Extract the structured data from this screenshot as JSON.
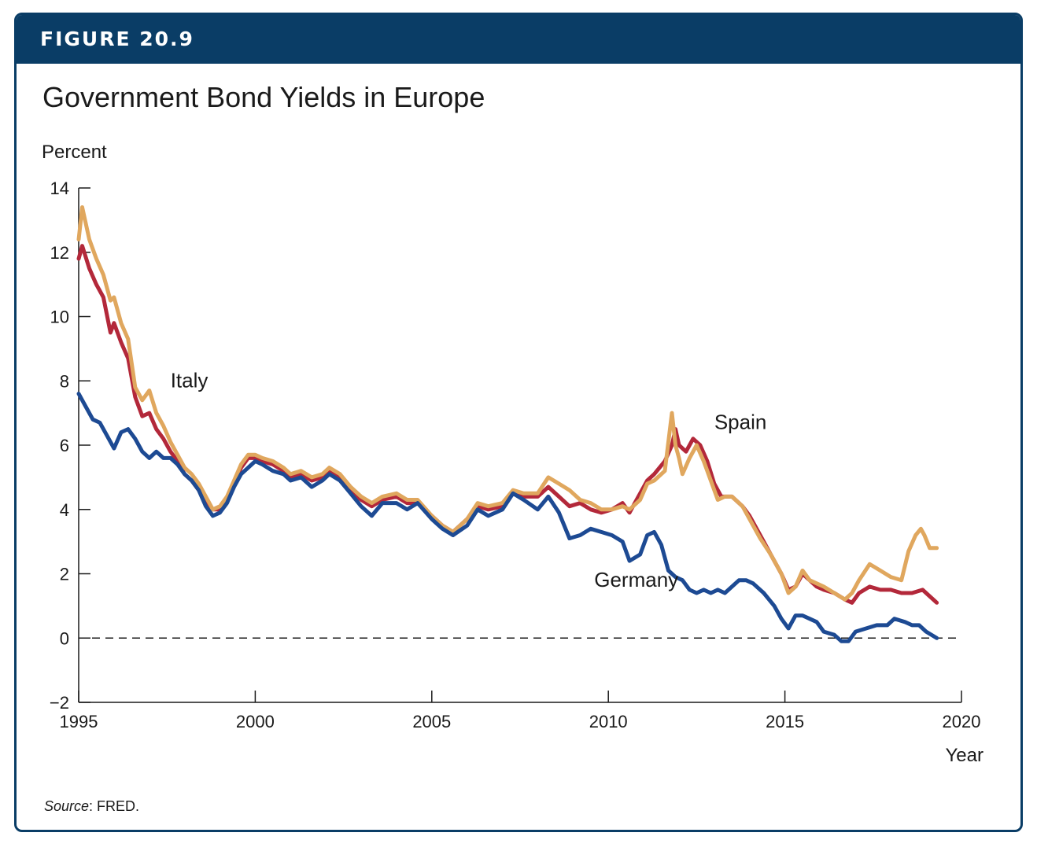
{
  "figure": {
    "label": "FIGURE 20.9",
    "title": "Government Bond Yields in Europe",
    "source_prefix": "Source",
    "source_text": ": FRED."
  },
  "colors": {
    "banner": "#0a3d66",
    "italy": "#b3283a",
    "spain": "#e0a75e",
    "germany": "#1d4a93"
  },
  "chart_data": {
    "type": "line",
    "ylabel": "Percent",
    "xlabel": "Year",
    "xlim": [
      1995,
      2020
    ],
    "ylim": [
      -2,
      14
    ],
    "xticks": [
      1995,
      2000,
      2005,
      2010,
      2015,
      2020
    ],
    "yticks": [
      -2,
      0,
      2,
      4,
      6,
      8,
      10,
      12,
      14
    ],
    "ytick_labels": [
      "−2",
      "0",
      "2",
      "4",
      "6",
      "8",
      "10",
      "12",
      "14"
    ],
    "reference_line": {
      "y": 0,
      "style": "dashed"
    },
    "grid": false,
    "series": [
      {
        "name": "Italy",
        "color": "#b3283a",
        "points": [
          [
            1995.0,
            11.8
          ],
          [
            1995.1,
            12.2
          ],
          [
            1995.3,
            11.5
          ],
          [
            1995.5,
            11.0
          ],
          [
            1995.7,
            10.6
          ],
          [
            1995.9,
            9.5
          ],
          [
            1996.0,
            9.8
          ],
          [
            1996.2,
            9.2
          ],
          [
            1996.4,
            8.7
          ],
          [
            1996.6,
            7.5
          ],
          [
            1996.8,
            6.9
          ],
          [
            1997.0,
            7.0
          ],
          [
            1997.2,
            6.5
          ],
          [
            1997.4,
            6.2
          ],
          [
            1997.6,
            5.8
          ],
          [
            1997.8,
            5.5
          ],
          [
            1998.0,
            5.1
          ],
          [
            1998.2,
            4.9
          ],
          [
            1998.4,
            4.6
          ],
          [
            1998.6,
            4.3
          ],
          [
            1998.8,
            4.0
          ],
          [
            1999.0,
            4.0
          ],
          [
            1999.2,
            4.3
          ],
          [
            1999.4,
            4.8
          ],
          [
            1999.6,
            5.3
          ],
          [
            1999.8,
            5.6
          ],
          [
            2000.0,
            5.6
          ],
          [
            2000.2,
            5.5
          ],
          [
            2000.5,
            5.4
          ],
          [
            2000.8,
            5.2
          ],
          [
            2001.0,
            5.0
          ],
          [
            2001.3,
            5.1
          ],
          [
            2001.6,
            4.9
          ],
          [
            2001.9,
            5.0
          ],
          [
            2002.1,
            5.2
          ],
          [
            2002.4,
            5.0
          ],
          [
            2002.7,
            4.6
          ],
          [
            2003.0,
            4.3
          ],
          [
            2003.3,
            4.1
          ],
          [
            2003.6,
            4.3
          ],
          [
            2004.0,
            4.4
          ],
          [
            2004.3,
            4.2
          ],
          [
            2004.6,
            4.2
          ],
          [
            2005.0,
            3.8
          ],
          [
            2005.3,
            3.5
          ],
          [
            2005.6,
            3.3
          ],
          [
            2006.0,
            3.7
          ],
          [
            2006.3,
            4.1
          ],
          [
            2006.6,
            4.0
          ],
          [
            2007.0,
            4.1
          ],
          [
            2007.3,
            4.5
          ],
          [
            2007.6,
            4.4
          ],
          [
            2008.0,
            4.4
          ],
          [
            2008.3,
            4.7
          ],
          [
            2008.6,
            4.4
          ],
          [
            2008.9,
            4.1
          ],
          [
            2009.2,
            4.2
          ],
          [
            2009.5,
            4.0
          ],
          [
            2009.8,
            3.9
          ],
          [
            2010.1,
            4.0
          ],
          [
            2010.4,
            4.2
          ],
          [
            2010.6,
            3.9
          ],
          [
            2010.9,
            4.5
          ],
          [
            2011.1,
            4.9
          ],
          [
            2011.3,
            5.1
          ],
          [
            2011.6,
            5.5
          ],
          [
            2011.8,
            6.0
          ],
          [
            2011.9,
            6.5
          ],
          [
            2012.0,
            6.0
          ],
          [
            2012.2,
            5.8
          ],
          [
            2012.4,
            6.2
          ],
          [
            2012.6,
            6.0
          ],
          [
            2012.8,
            5.5
          ],
          [
            2013.0,
            4.8
          ],
          [
            2013.2,
            4.4
          ],
          [
            2013.5,
            4.4
          ],
          [
            2013.8,
            4.1
          ],
          [
            2014.0,
            3.8
          ],
          [
            2014.3,
            3.2
          ],
          [
            2014.6,
            2.6
          ],
          [
            2014.9,
            2.0
          ],
          [
            2015.1,
            1.5
          ],
          [
            2015.3,
            1.6
          ],
          [
            2015.5,
            2.0
          ],
          [
            2015.7,
            1.8
          ],
          [
            2015.9,
            1.6
          ],
          [
            2016.1,
            1.5
          ],
          [
            2016.4,
            1.4
          ],
          [
            2016.7,
            1.2
          ],
          [
            2016.9,
            1.1
          ],
          [
            2017.1,
            1.4
          ],
          [
            2017.4,
            1.6
          ],
          [
            2017.7,
            1.5
          ],
          [
            2018.0,
            1.5
          ],
          [
            2018.3,
            1.4
          ],
          [
            2018.6,
            1.4
          ],
          [
            2018.9,
            1.5
          ],
          [
            2019.1,
            1.3
          ],
          [
            2019.3,
            1.1
          ]
        ]
      },
      {
        "name": "Spain",
        "color": "#e0a75e",
        "points": [
          [
            1995.0,
            12.4
          ],
          [
            1995.1,
            13.4
          ],
          [
            1995.3,
            12.4
          ],
          [
            1995.5,
            11.8
          ],
          [
            1995.7,
            11.3
          ],
          [
            1995.9,
            10.5
          ],
          [
            1996.0,
            10.6
          ],
          [
            1996.2,
            9.8
          ],
          [
            1996.4,
            9.3
          ],
          [
            1996.6,
            7.8
          ],
          [
            1996.8,
            7.4
          ],
          [
            1997.0,
            7.7
          ],
          [
            1997.2,
            7.0
          ],
          [
            1997.4,
            6.6
          ],
          [
            1997.6,
            6.1
          ],
          [
            1997.8,
            5.7
          ],
          [
            1998.0,
            5.3
          ],
          [
            1998.2,
            5.1
          ],
          [
            1998.4,
            4.8
          ],
          [
            1998.6,
            4.4
          ],
          [
            1998.8,
            4.0
          ],
          [
            1999.0,
            4.1
          ],
          [
            1999.2,
            4.4
          ],
          [
            1999.4,
            4.9
          ],
          [
            1999.6,
            5.4
          ],
          [
            1999.8,
            5.7
          ],
          [
            2000.0,
            5.7
          ],
          [
            2000.2,
            5.6
          ],
          [
            2000.5,
            5.5
          ],
          [
            2000.8,
            5.3
          ],
          [
            2001.0,
            5.1
          ],
          [
            2001.3,
            5.2
          ],
          [
            2001.6,
            5.0
          ],
          [
            2001.9,
            5.1
          ],
          [
            2002.1,
            5.3
          ],
          [
            2002.4,
            5.1
          ],
          [
            2002.7,
            4.7
          ],
          [
            2003.0,
            4.4
          ],
          [
            2003.3,
            4.2
          ],
          [
            2003.6,
            4.4
          ],
          [
            2004.0,
            4.5
          ],
          [
            2004.3,
            4.3
          ],
          [
            2004.6,
            4.3
          ],
          [
            2005.0,
            3.8
          ],
          [
            2005.3,
            3.5
          ],
          [
            2005.6,
            3.3
          ],
          [
            2006.0,
            3.7
          ],
          [
            2006.3,
            4.2
          ],
          [
            2006.6,
            4.1
          ],
          [
            2007.0,
            4.2
          ],
          [
            2007.3,
            4.6
          ],
          [
            2007.6,
            4.5
          ],
          [
            2008.0,
            4.5
          ],
          [
            2008.3,
            5.0
          ],
          [
            2008.6,
            4.8
          ],
          [
            2008.9,
            4.6
          ],
          [
            2009.2,
            4.3
          ],
          [
            2009.5,
            4.2
          ],
          [
            2009.8,
            4.0
          ],
          [
            2010.1,
            4.0
          ],
          [
            2010.4,
            4.1
          ],
          [
            2010.6,
            4.0
          ],
          [
            2010.9,
            4.3
          ],
          [
            2011.1,
            4.8
          ],
          [
            2011.3,
            4.9
          ],
          [
            2011.6,
            5.2
          ],
          [
            2011.8,
            7.0
          ],
          [
            2011.9,
            6.0
          ],
          [
            2012.0,
            5.6
          ],
          [
            2012.1,
            5.1
          ],
          [
            2012.3,
            5.6
          ],
          [
            2012.5,
            6.0
          ],
          [
            2012.7,
            5.5
          ],
          [
            2012.9,
            4.9
          ],
          [
            2013.1,
            4.3
          ],
          [
            2013.3,
            4.4
          ],
          [
            2013.5,
            4.4
          ],
          [
            2013.8,
            4.1
          ],
          [
            2014.0,
            3.7
          ],
          [
            2014.3,
            3.1
          ],
          [
            2014.6,
            2.6
          ],
          [
            2014.9,
            2.0
          ],
          [
            2015.1,
            1.4
          ],
          [
            2015.3,
            1.6
          ],
          [
            2015.5,
            2.1
          ],
          [
            2015.7,
            1.8
          ],
          [
            2015.9,
            1.7
          ],
          [
            2016.1,
            1.6
          ],
          [
            2016.4,
            1.4
          ],
          [
            2016.7,
            1.2
          ],
          [
            2016.9,
            1.4
          ],
          [
            2017.1,
            1.8
          ],
          [
            2017.4,
            2.3
          ],
          [
            2017.7,
            2.1
          ],
          [
            2018.0,
            1.9
          ],
          [
            2018.3,
            1.8
          ],
          [
            2018.5,
            2.7
          ],
          [
            2018.7,
            3.2
          ],
          [
            2018.85,
            3.4
          ],
          [
            2018.95,
            3.2
          ],
          [
            2019.1,
            2.8
          ],
          [
            2019.3,
            2.8
          ]
        ]
      },
      {
        "name": "Germany",
        "color": "#1d4a93",
        "points": [
          [
            1995.0,
            7.6
          ],
          [
            1995.2,
            7.2
          ],
          [
            1995.4,
            6.8
          ],
          [
            1995.6,
            6.7
          ],
          [
            1995.8,
            6.3
          ],
          [
            1996.0,
            5.9
          ],
          [
            1996.2,
            6.4
          ],
          [
            1996.4,
            6.5
          ],
          [
            1996.6,
            6.2
          ],
          [
            1996.8,
            5.8
          ],
          [
            1997.0,
            5.6
          ],
          [
            1997.2,
            5.8
          ],
          [
            1997.4,
            5.6
          ],
          [
            1997.6,
            5.6
          ],
          [
            1997.8,
            5.4
          ],
          [
            1998.0,
            5.1
          ],
          [
            1998.2,
            4.9
          ],
          [
            1998.4,
            4.6
          ],
          [
            1998.6,
            4.1
          ],
          [
            1998.8,
            3.8
          ],
          [
            1999.0,
            3.9
          ],
          [
            1999.2,
            4.2
          ],
          [
            1999.4,
            4.7
          ],
          [
            1999.6,
            5.1
          ],
          [
            1999.8,
            5.3
          ],
          [
            2000.0,
            5.5
          ],
          [
            2000.2,
            5.4
          ],
          [
            2000.5,
            5.2
          ],
          [
            2000.8,
            5.1
          ],
          [
            2001.0,
            4.9
          ],
          [
            2001.3,
            5.0
          ],
          [
            2001.6,
            4.7
          ],
          [
            2001.9,
            4.9
          ],
          [
            2002.1,
            5.1
          ],
          [
            2002.4,
            4.9
          ],
          [
            2002.7,
            4.5
          ],
          [
            2003.0,
            4.1
          ],
          [
            2003.3,
            3.8
          ],
          [
            2003.6,
            4.2
          ],
          [
            2004.0,
            4.2
          ],
          [
            2004.3,
            4.0
          ],
          [
            2004.6,
            4.2
          ],
          [
            2005.0,
            3.7
          ],
          [
            2005.3,
            3.4
          ],
          [
            2005.6,
            3.2
          ],
          [
            2006.0,
            3.5
          ],
          [
            2006.3,
            4.0
          ],
          [
            2006.6,
            3.8
          ],
          [
            2007.0,
            4.0
          ],
          [
            2007.3,
            4.5
          ],
          [
            2007.6,
            4.3
          ],
          [
            2008.0,
            4.0
          ],
          [
            2008.3,
            4.4
          ],
          [
            2008.6,
            3.9
          ],
          [
            2008.9,
            3.1
          ],
          [
            2009.2,
            3.2
          ],
          [
            2009.5,
            3.4
          ],
          [
            2009.8,
            3.3
          ],
          [
            2010.1,
            3.2
          ],
          [
            2010.4,
            3.0
          ],
          [
            2010.6,
            2.4
          ],
          [
            2010.9,
            2.6
          ],
          [
            2011.1,
            3.2
          ],
          [
            2011.3,
            3.3
          ],
          [
            2011.5,
            2.9
          ],
          [
            2011.7,
            2.1
          ],
          [
            2011.9,
            1.9
          ],
          [
            2012.1,
            1.8
          ],
          [
            2012.3,
            1.5
          ],
          [
            2012.5,
            1.4
          ],
          [
            2012.7,
            1.5
          ],
          [
            2012.9,
            1.4
          ],
          [
            2013.1,
            1.5
          ],
          [
            2013.3,
            1.4
          ],
          [
            2013.5,
            1.6
          ],
          [
            2013.7,
            1.8
          ],
          [
            2013.9,
            1.8
          ],
          [
            2014.1,
            1.7
          ],
          [
            2014.4,
            1.4
          ],
          [
            2014.7,
            1.0
          ],
          [
            2014.9,
            0.6
          ],
          [
            2015.1,
            0.3
          ],
          [
            2015.3,
            0.7
          ],
          [
            2015.5,
            0.7
          ],
          [
            2015.7,
            0.6
          ],
          [
            2015.9,
            0.5
          ],
          [
            2016.1,
            0.2
          ],
          [
            2016.4,
            0.1
          ],
          [
            2016.6,
            -0.1
          ],
          [
            2016.8,
            -0.1
          ],
          [
            2017.0,
            0.2
          ],
          [
            2017.3,
            0.3
          ],
          [
            2017.6,
            0.4
          ],
          [
            2017.9,
            0.4
          ],
          [
            2018.1,
            0.6
          ],
          [
            2018.4,
            0.5
          ],
          [
            2018.6,
            0.4
          ],
          [
            2018.8,
            0.4
          ],
          [
            2019.0,
            0.2
          ],
          [
            2019.3,
            0.0
          ]
        ]
      }
    ],
    "annotations": [
      {
        "text": "Italy",
        "x": 1997.6,
        "y": 7.8
      },
      {
        "text": "Spain",
        "x": 2013.0,
        "y": 6.5
      },
      {
        "text": "Germany",
        "x": 2009.6,
        "y": 1.6
      }
    ]
  }
}
